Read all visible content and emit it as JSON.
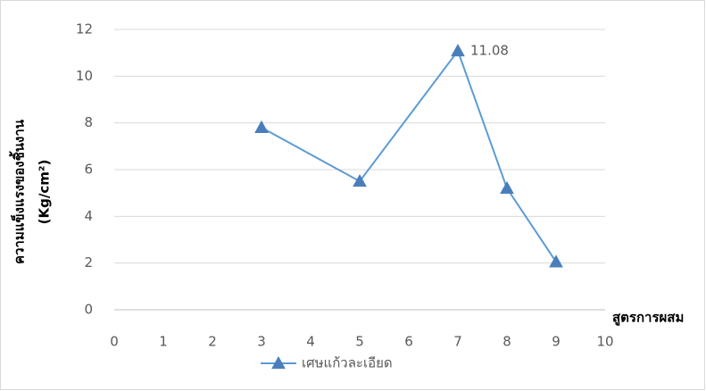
{
  "chart_data": {
    "type": "line",
    "y_label": [
      "ความแข็งแรงของชิ้นงาน",
      "(Kg/cm²)"
    ],
    "x_label": "สูตรการผสม",
    "x": [
      3,
      5,
      7,
      8,
      9
    ],
    "series": [
      {
        "name": "เศษแก้วละเอียด",
        "color": "#5b9bd5",
        "marker_color": "#4a7ebb",
        "values": [
          7.8,
          5.5,
          11.08,
          5.2,
          2.05
        ],
        "value_labels": [
          null,
          null,
          "11.08",
          null,
          null
        ]
      }
    ],
    "xlim": [
      0,
      10
    ],
    "xticks": [
      0,
      1,
      2,
      3,
      4,
      5,
      6,
      7,
      8,
      9,
      10
    ],
    "ylim": [
      0,
      12
    ],
    "yticks": [
      0,
      2,
      4,
      6,
      8,
      10,
      12
    ],
    "grid": true,
    "legend": "bottom"
  }
}
